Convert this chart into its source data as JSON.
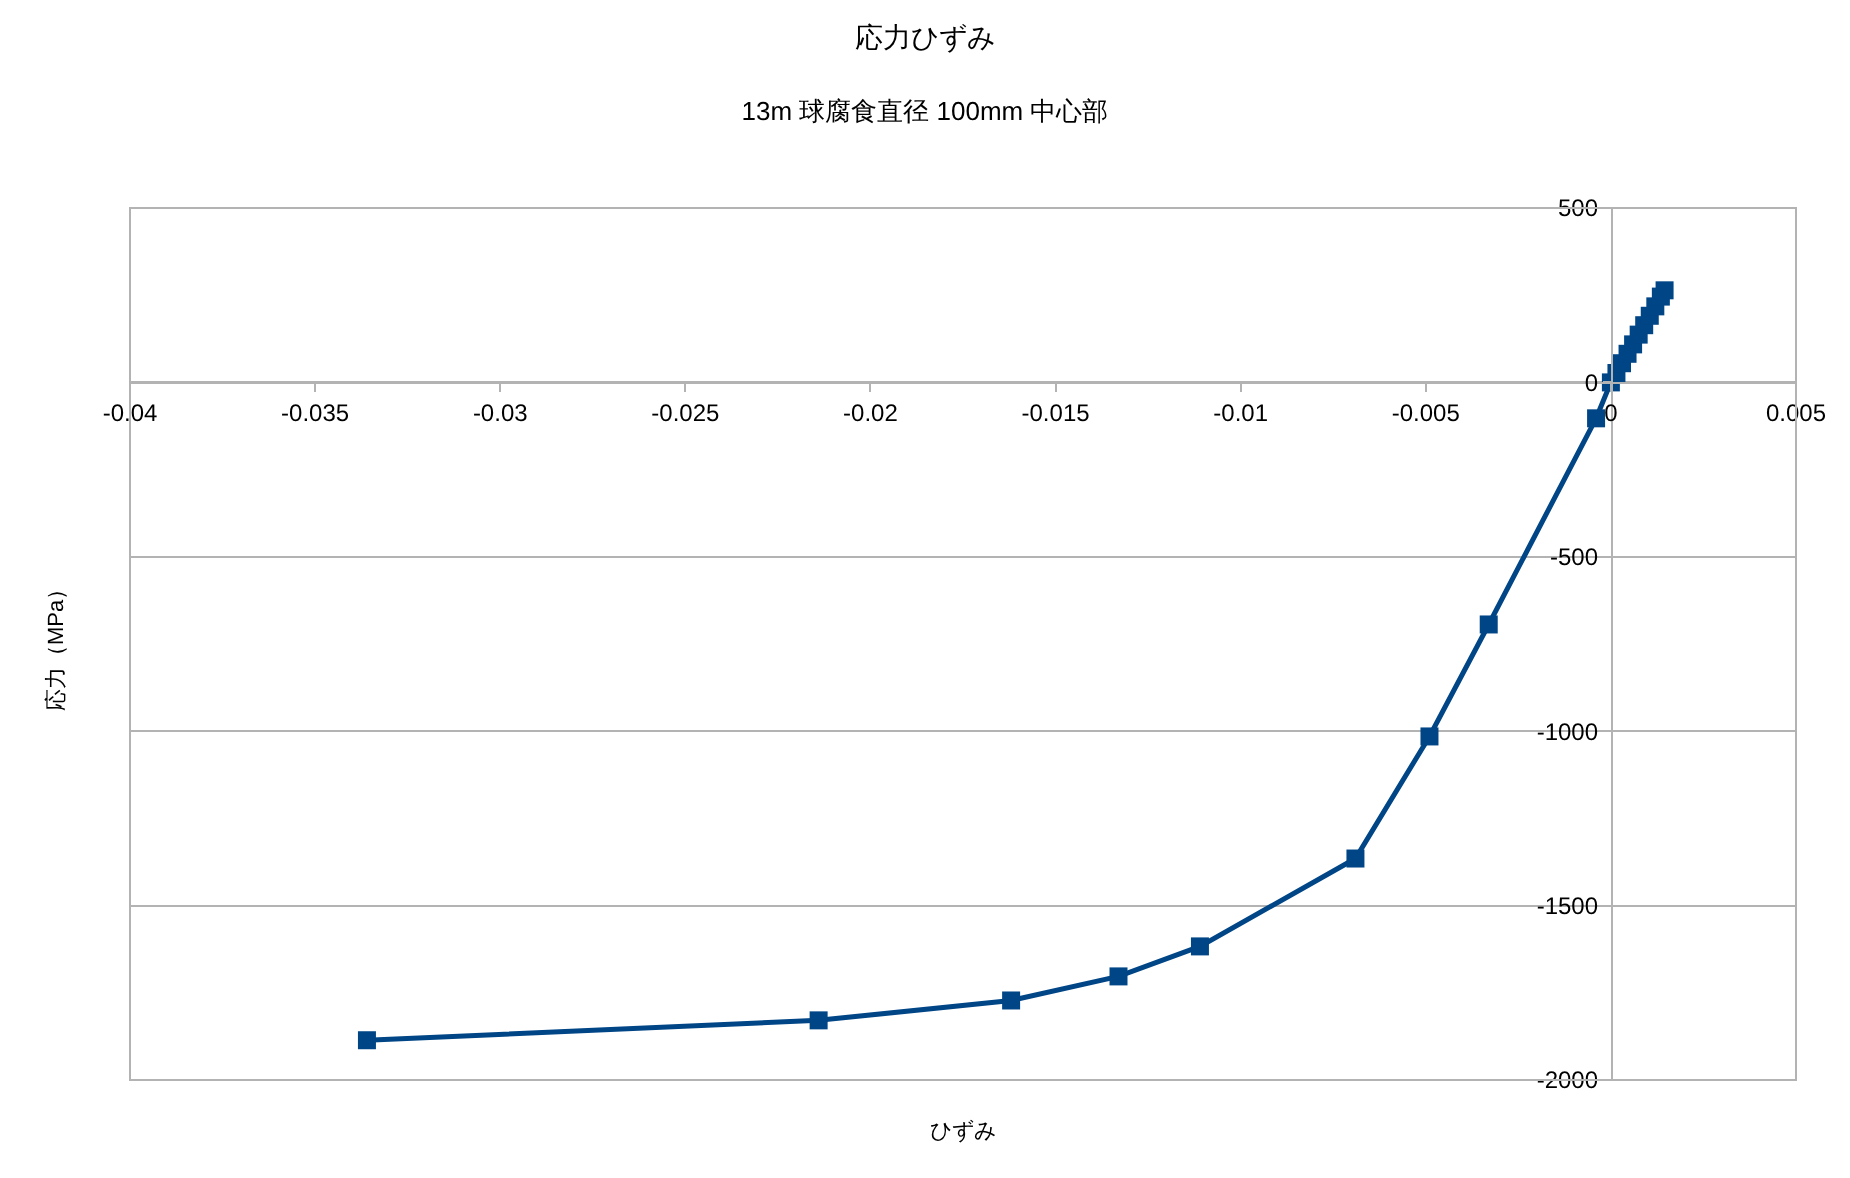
{
  "chart_data": {
    "type": "line",
    "title": "応力ひずみ",
    "subtitle": "13m 球腐食直径 100mm 中心部",
    "xlabel": "ひずみ",
    "ylabel": "応力（MPa）",
    "x": [
      -0.0336,
      -0.0214,
      -0.0162,
      -0.0133,
      -0.0111,
      -0.0069,
      -0.0049,
      -0.0033,
      -0.0004,
      0,
      0.00015,
      0.0003,
      0.00045,
      0.0006,
      0.00075,
      0.0009,
      0.00105,
      0.0012,
      0.00135,
      0.00145
    ],
    "series": [
      {
        "color": "#004586",
        "values": [
          -1886,
          -1829,
          -1772,
          -1703,
          -1617,
          -1365,
          -1015,
          -694,
          -103,
          0,
          27,
          55,
          82,
          109,
          137,
          164,
          191,
          218,
          246,
          264
        ]
      }
    ],
    "xlim": [
      -0.04,
      0.005
    ],
    "xticks": [
      -0.04,
      -0.035,
      -0.03,
      -0.025,
      -0.02,
      -0.015,
      -0.01,
      -0.005,
      0,
      0.005
    ],
    "ylim": [
      -2000,
      500
    ],
    "yticks": [
      -2000,
      -1500,
      -1000,
      -500,
      0,
      500
    ],
    "grid": "y",
    "legend": false,
    "marker": "square",
    "line_style": "solid"
  }
}
